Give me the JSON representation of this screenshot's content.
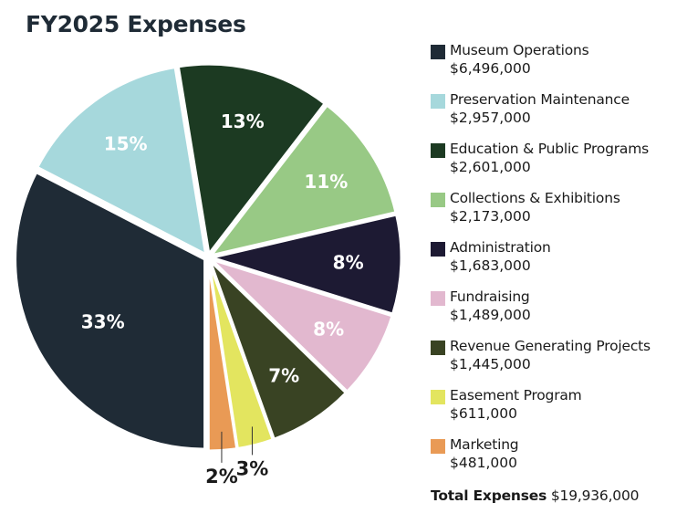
{
  "chart_data": {
    "type": "pie",
    "title": "FY2025 Expenses",
    "categories": [
      "Museum Operations",
      "Preservation Maintenance",
      "Education & Public Programs",
      "Collections & Exhibitions",
      "Administration",
      "Fundraising",
      "Revenue Generating Projects",
      "Easement Program",
      "Marketing"
    ],
    "values": [
      6496000,
      2957000,
      2601000,
      2173000,
      1683000,
      1489000,
      1445000,
      611000,
      481000
    ],
    "amount_labels": [
      "$6,496,000",
      "$2,957,000",
      "$2,601,000",
      "$2,173,000",
      "$1,683,000",
      "$1,489,000",
      "$1,445,000",
      "$611,000",
      "$481,000"
    ],
    "percent_labels": [
      "33%",
      "15%",
      "13%",
      "11%",
      "8%",
      "8%",
      "7%",
      "3%",
      "2%"
    ],
    "colors": [
      "#1f2b36",
      "#a6d8dc",
      "#1c3a22",
      "#98c985",
      "#1d1a33",
      "#e2b8cf",
      "#394323",
      "#e3e55f",
      "#e99a55"
    ],
    "legend_position": "right",
    "total_label": "Total Expenses",
    "total_value": "$19,936,000"
  }
}
